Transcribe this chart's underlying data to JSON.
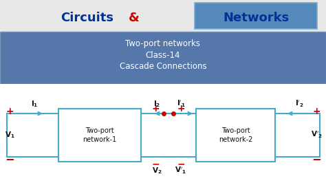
{
  "bg_color": "#e8e8e8",
  "title_circuits_color": "#003399",
  "title_amp_color": "#cc0000",
  "title_networks_color": "#003399",
  "title_networks_bg": "#5588bb",
  "title_networks_border": "#7aaacc",
  "subtitle_bg": "#5577aa",
  "subtitle_lines": [
    "Two-port networks",
    "Class-14",
    "Cascade Connections"
  ],
  "subtitle_color": "#ffffff",
  "circuit_bg": "#f5f5f5",
  "box_color": "#44aacc",
  "line_color": "#44aacc",
  "red_color": "#cc0000",
  "text_color": "#111111",
  "figsize": [
    4.74,
    2.66
  ],
  "dpi": 100
}
